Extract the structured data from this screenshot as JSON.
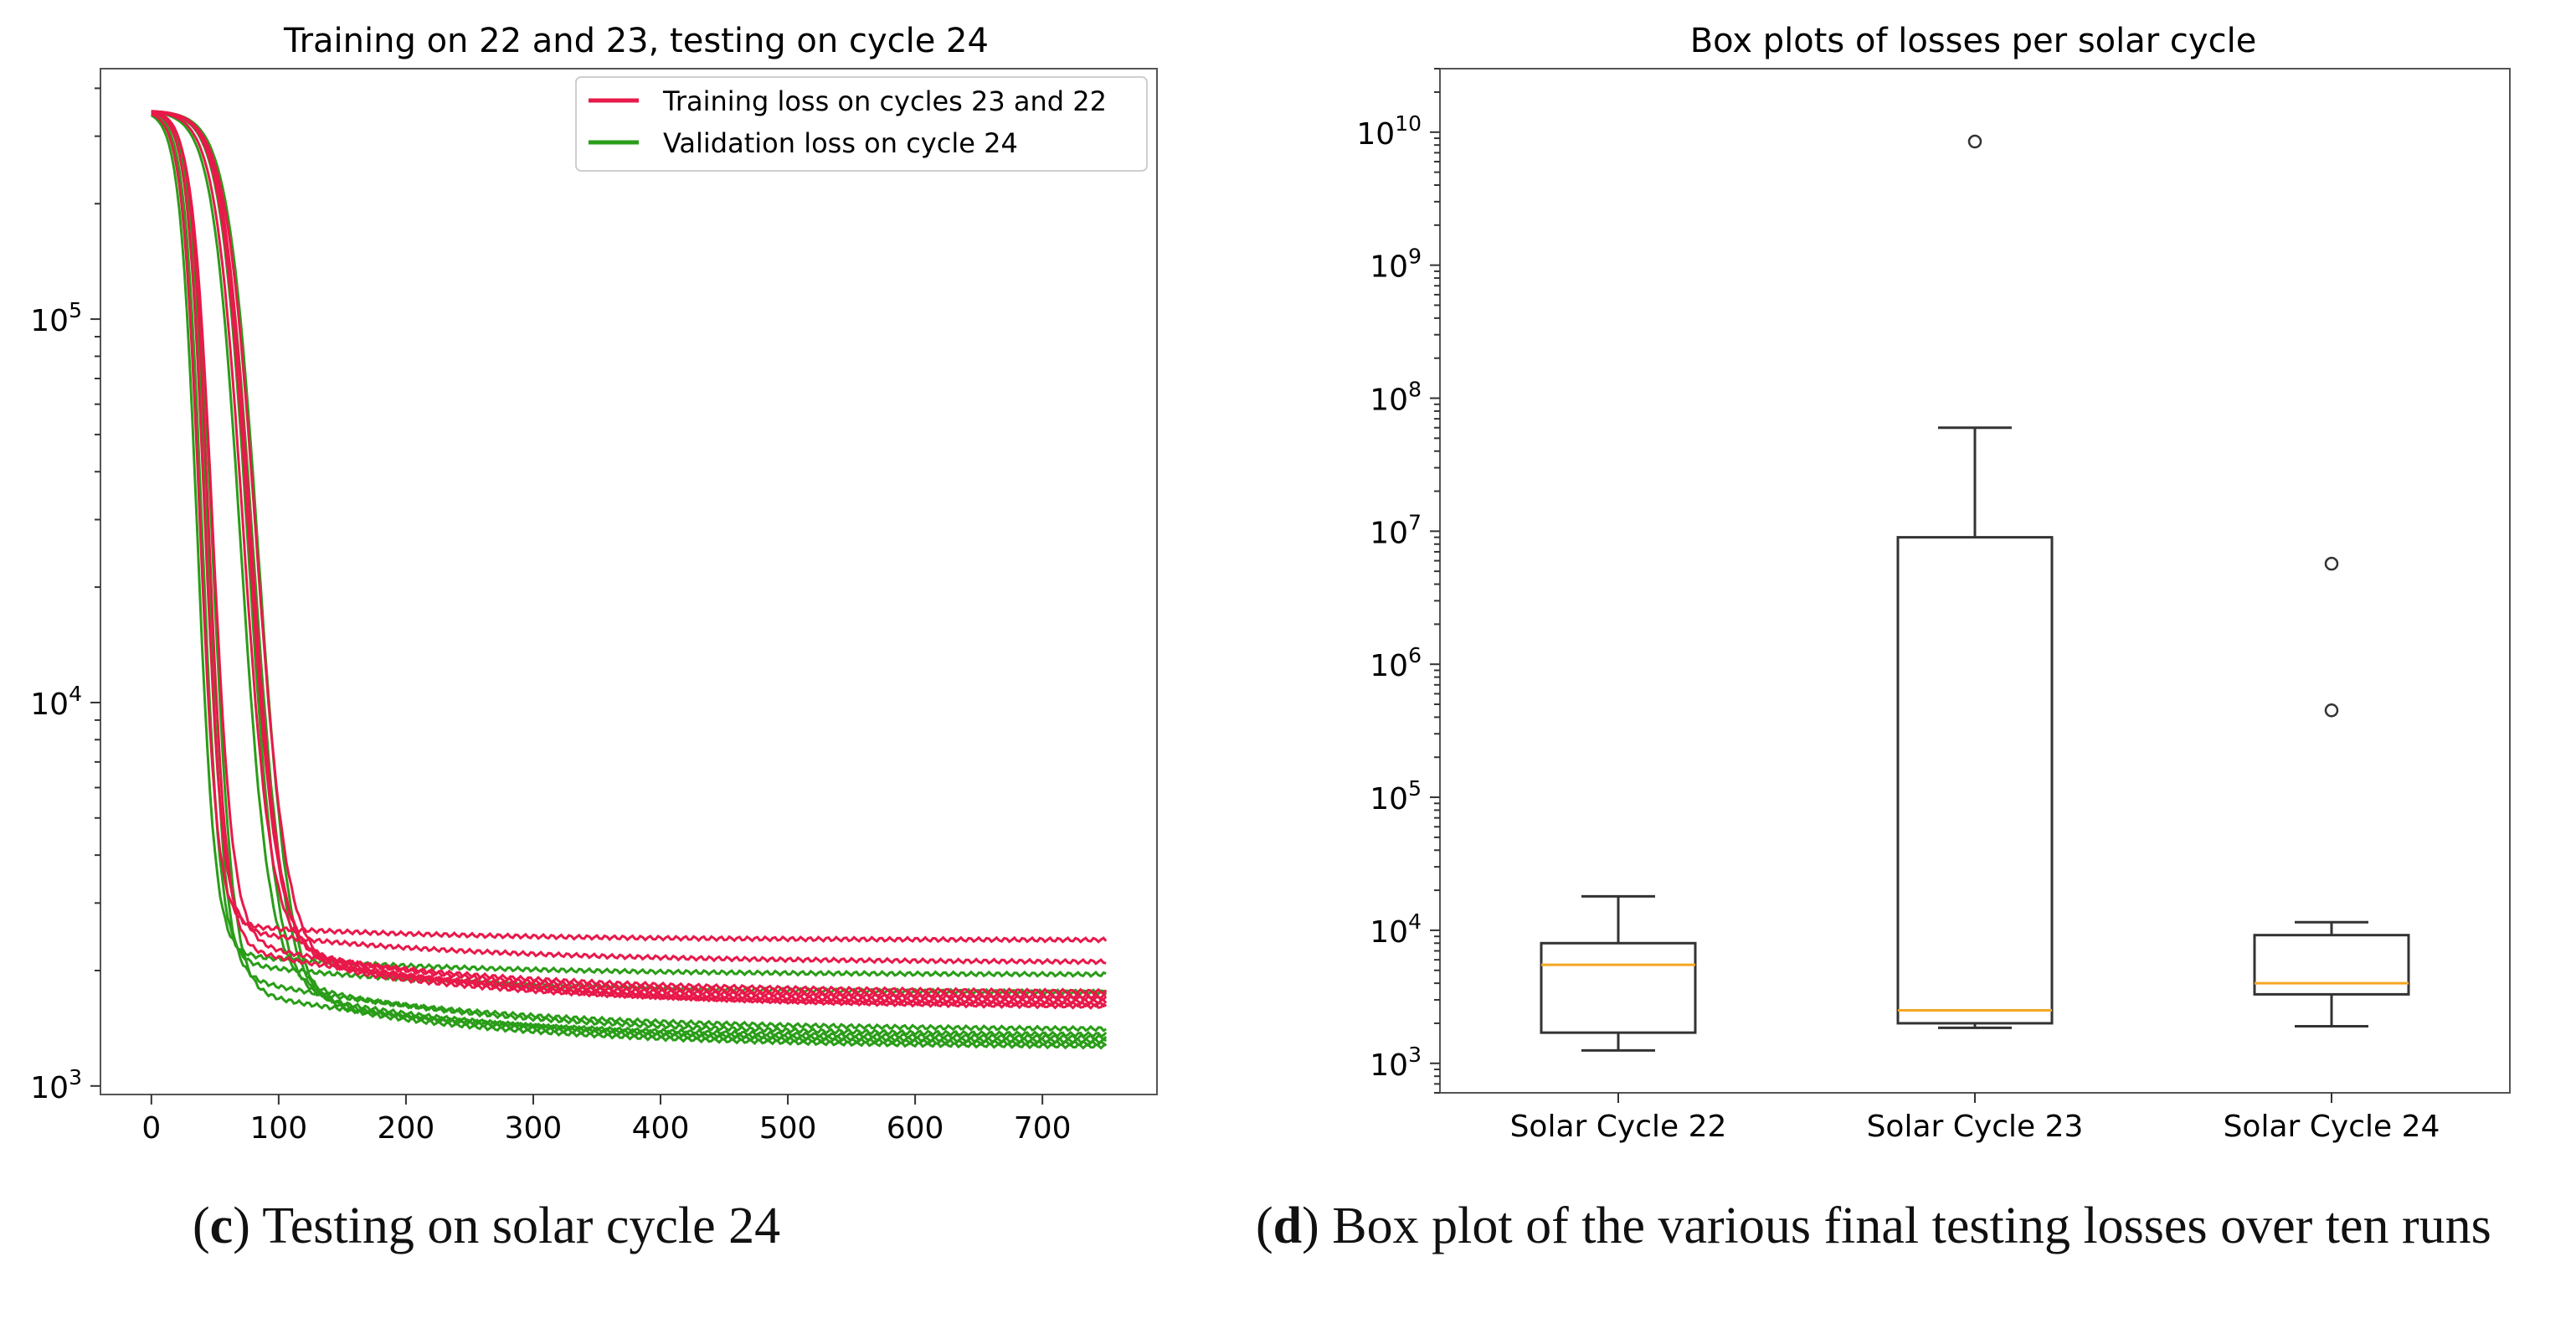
{
  "chart_data": [
    {
      "id": "c",
      "type": "line",
      "title": "Training on 22 and 23, testing on cycle 24",
      "xlabel": "",
      "ylabel": "",
      "yscale": "log",
      "xlim": [
        -40,
        790
      ],
      "ylim": [
        950,
        450000
      ],
      "xticks": [
        0,
        100,
        200,
        300,
        400,
        500,
        600,
        700
      ],
      "xtick_labels": [
        "0",
        "100",
        "200",
        "300",
        "400",
        "500",
        "600",
        "700"
      ],
      "yticks": [
        1000,
        10000,
        100000
      ],
      "ytick_labels": [
        {
          "base": "10",
          "exp": "3"
        },
        {
          "base": "10",
          "exp": "4"
        },
        {
          "base": "10",
          "exp": "5"
        }
      ],
      "legend": {
        "position": "top-right",
        "entries": [
          {
            "label": "Training loss on cycles 23 and 22",
            "color": "#e8194a"
          },
          {
            "label": "Validation loss on cycle 24",
            "color": "#2a9d18"
          }
        ]
      },
      "series": [
        {
          "name": "train-1",
          "group": "train",
          "color": "#e8194a",
          "start": 350000,
          "drop": 38,
          "w": 7,
          "knee": 2700,
          "end": 2400
        },
        {
          "name": "train-2",
          "group": "train",
          "color": "#e8194a",
          "start": 350000,
          "drop": 42,
          "w": 7,
          "knee": 2750,
          "end": 2100
        },
        {
          "name": "train-3",
          "group": "train",
          "color": "#e8194a",
          "start": 350000,
          "drop": 48,
          "w": 8,
          "knee": 2700,
          "end": 1750
        },
        {
          "name": "train-4",
          "group": "train",
          "color": "#e8194a",
          "start": 350000,
          "drop": 72,
          "w": 11,
          "knee": 2800,
          "end": 1700
        },
        {
          "name": "train-5",
          "group": "train",
          "color": "#e8194a",
          "start": 350000,
          "drop": 78,
          "w": 11,
          "knee": 2650,
          "end": 1650
        },
        {
          "name": "train-6",
          "group": "train",
          "color": "#e8194a",
          "start": 350000,
          "drop": 82,
          "w": 12,
          "knee": 2600,
          "end": 1620
        },
        {
          "name": "train-7",
          "group": "train",
          "color": "#e8194a",
          "start": 350000,
          "drop": 45,
          "w": 7,
          "knee": 2600,
          "end": 1680
        },
        {
          "name": "train-8",
          "group": "train",
          "color": "#e8194a",
          "start": 350000,
          "drop": 76,
          "w": 11,
          "knee": 2900,
          "end": 1600
        },
        {
          "name": "val-1",
          "group": "val",
          "color": "#2a9d18",
          "start": 350000,
          "drop": 36,
          "w": 7,
          "knee": 2300,
          "end": 1950
        },
        {
          "name": "val-2",
          "group": "val",
          "color": "#2a9d18",
          "start": 350000,
          "drop": 40,
          "w": 7,
          "knee": 2250,
          "end": 1750
        },
        {
          "name": "val-3",
          "group": "val",
          "color": "#2a9d18",
          "start": 350000,
          "drop": 44,
          "w": 7,
          "knee": 2200,
          "end": 1400
        },
        {
          "name": "val-4",
          "group": "val",
          "color": "#2a9d18",
          "start": 350000,
          "drop": 70,
          "w": 11,
          "knee": 2350,
          "end": 1350
        },
        {
          "name": "val-5",
          "group": "val",
          "color": "#2a9d18",
          "start": 350000,
          "drop": 76,
          "w": 11,
          "knee": 2200,
          "end": 1300
        },
        {
          "name": "val-6",
          "group": "val",
          "color": "#2a9d18",
          "start": 350000,
          "drop": 80,
          "w": 12,
          "knee": 2150,
          "end": 1280
        },
        {
          "name": "val-7",
          "group": "val",
          "color": "#2a9d18",
          "start": 350000,
          "drop": 48,
          "w": 8,
          "knee": 2000,
          "end": 1330
        },
        {
          "name": "val-8",
          "group": "val",
          "color": "#2a9d18",
          "start": 350000,
          "drop": 84,
          "w": 12,
          "knee": 2100,
          "end": 1260
        }
      ]
    },
    {
      "id": "d",
      "type": "box",
      "title": "Box plots of losses per solar cycle",
      "yscale": "log",
      "ylim": [
        600,
        30000000000
      ],
      "yticks": [
        1000,
        10000,
        100000,
        1000000,
        10000000,
        100000000,
        1000000000,
        10000000000
      ],
      "ytick_labels": [
        {
          "base": "10",
          "exp": "3"
        },
        {
          "base": "10",
          "exp": "4"
        },
        {
          "base": "10",
          "exp": "5"
        },
        {
          "base": "10",
          "exp": "6"
        },
        {
          "base": "10",
          "exp": "7"
        },
        {
          "base": "10",
          "exp": "8"
        },
        {
          "base": "10",
          "exp": "9"
        },
        {
          "base": "10",
          "exp": "10"
        }
      ],
      "categories": [
        "Solar Cycle 22",
        "Solar Cycle 23",
        "Solar Cycle 24"
      ],
      "boxes": [
        {
          "category": "Solar Cycle 22",
          "whisker_low": 1250,
          "q1": 1700,
          "median": 5500,
          "q3": 8000,
          "whisker_high": 18000,
          "outliers": []
        },
        {
          "category": "Solar Cycle 23",
          "whisker_low": 1850,
          "q1": 2000,
          "median": 2500,
          "q3": 9000000,
          "whisker_high": 60000000,
          "outliers": [
            8500000000
          ]
        },
        {
          "category": "Solar Cycle 24",
          "whisker_low": 1900,
          "q1": 3300,
          "median": 4000,
          "q3": 9200,
          "whisker_high": 11500,
          "outliers": [
            450000,
            5700000
          ]
        }
      ],
      "box_color": "#333333",
      "median_color": "#f5a623"
    }
  ],
  "captions": {
    "c": {
      "label": "c",
      "text": " Testing on solar cycle 24"
    },
    "d": {
      "label": "d",
      "text": " Box plot of the various final testing losses over ten runs"
    }
  }
}
